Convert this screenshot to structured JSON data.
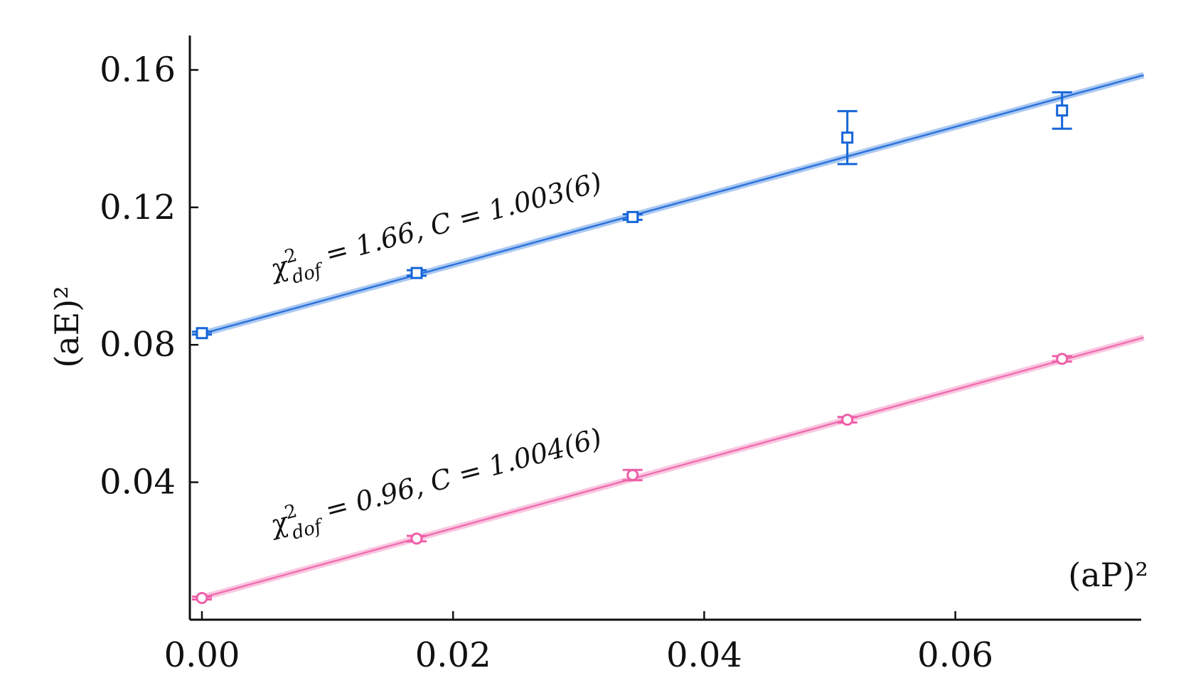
{
  "chart_data": {
    "type": "scatter",
    "xlabel": "(aP)²",
    "ylabel": "(aE)²",
    "xlim": [
      -0.001,
      0.075
    ],
    "ylim": [
      0.0,
      0.17
    ],
    "xticks": [
      0.0,
      0.02,
      0.04,
      0.06
    ],
    "xtick_labels": [
      "0.00",
      "0.02",
      "0.04",
      "0.06"
    ],
    "yticks": [
      0.04,
      0.08,
      0.12,
      0.16
    ],
    "ytick_labels": [
      "0.04",
      "0.08",
      "0.12",
      "0.16"
    ],
    "grid": false,
    "series": [
      {
        "color": "#1565d8",
        "marker": "square",
        "x": [
          0.0,
          0.0171,
          0.0343,
          0.0514,
          0.0685
        ],
        "y": [
          0.0834,
          0.1009,
          0.1172,
          0.1403,
          0.1482
        ],
        "yerr": [
          0.0004,
          0.0008,
          0.0008,
          0.0077,
          0.0053
        ],
        "fit": {
          "x": [
            0.0,
            0.075
          ],
          "y": [
            0.0832,
            0.1585
          ]
        },
        "annotation": {
          "prefix": "χ",
          "sup": "2",
          "sub": "dof",
          "text": " = 1.66, C = 1.003(6)"
        }
      },
      {
        "color": "#ee5fa8",
        "marker": "circle",
        "x": [
          0.0,
          0.0171,
          0.0343,
          0.0514,
          0.0685
        ],
        "y": [
          0.0063,
          0.0236,
          0.0421,
          0.0582,
          0.0759
        ],
        "yerr": [
          0.0004,
          0.0008,
          0.0015,
          0.0008,
          0.0008
        ],
        "fit": {
          "x": [
            0.0,
            0.075
          ],
          "y": [
            0.0064,
            0.0821
          ]
        },
        "annotation": {
          "prefix": "χ",
          "sup": "2",
          "sub": "dof",
          "text": " = 0.96, C = 1.004(6)"
        }
      }
    ]
  }
}
